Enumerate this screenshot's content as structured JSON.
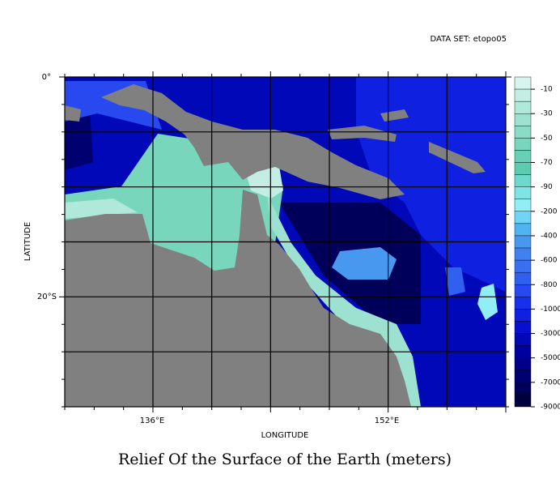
{
  "header": {
    "dataset": "DATA SET: etopo05"
  },
  "map": {
    "title": "Relief Of the Surface of the Earth (meters)",
    "x_label": "LONGITUDE",
    "y_label": "LATITUDE",
    "x_ticks": [
      "136°E",
      "152°E"
    ],
    "y_ticks": [
      "0°",
      "20°S"
    ],
    "land_color": "#808080",
    "colorbar": {
      "levels": [
        -10,
        -30,
        -50,
        -70,
        -90,
        -200,
        -400,
        -600,
        -800,
        -1000,
        -3000,
        -5000,
        -7000,
        -9000
      ],
      "colors": [
        "#d8f4ee",
        "#c4eee4",
        "#b0e8da",
        "#9de2d0",
        "#8adcc6",
        "#78d6bc",
        "#68d0b4",
        "#5cccb0",
        "#6ed8cc",
        "#80e4e4",
        "#90eef4",
        "#70d4f4",
        "#50b4f0",
        "#4898f0",
        "#4080f0",
        "#3870f0",
        "#3060f0",
        "#2848f0",
        "#1830ec",
        "#1020e0",
        "#0810d0",
        "#0008b8",
        "#0000a0",
        "#000088",
        "#000070",
        "#00005a",
        "#000040"
      ]
    }
  }
}
